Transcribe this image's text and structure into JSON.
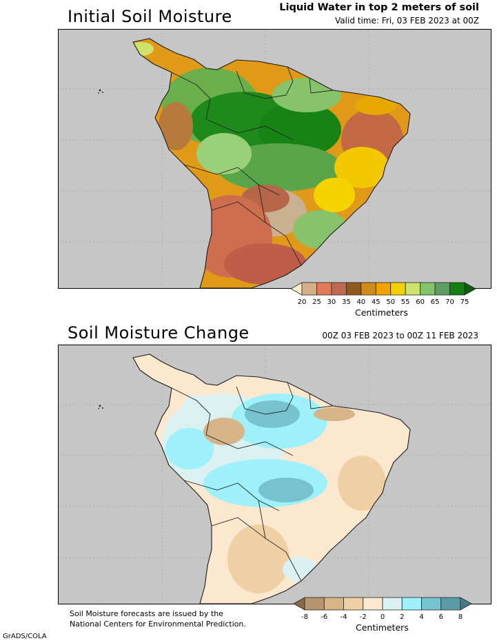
{
  "panel1": {
    "title": "Initial Soil Moisture",
    "header_line1": "Liquid Water in top 2 meters of soil",
    "header_line2": "Valid time: Fri, 03 FEB 2023 at 00Z",
    "colorbar": {
      "ticks": [
        "20",
        "25",
        "30",
        "35",
        "40",
        "45",
        "50",
        "55",
        "60",
        "65",
        "70",
        "75"
      ],
      "colors": [
        "#f6eccb",
        "#d4b08a",
        "#e07a58",
        "#bf6950",
        "#8f5a1c",
        "#cf8a1a",
        "#f0a300",
        "#f2d000",
        "#cde36b",
        "#84c46a",
        "#5d9d61",
        "#127f13",
        "#0b5f0c"
      ],
      "units": "Centimeters"
    }
  },
  "panel2": {
    "title": "Soil Moisture Change",
    "header_line1": "00Z 03 FEB 2023 to 00Z 11 FEB 2023",
    "colorbar": {
      "ticks": [
        "-8",
        "-6",
        "-4",
        "-2",
        "0",
        "2",
        "4",
        "6",
        "8"
      ],
      "colors": [
        "#8b6a4a",
        "#b89470",
        "#d6b487",
        "#efcfa4",
        "#fce8cf",
        "#dbf0f0",
        "#9ef1fa",
        "#76c3cd",
        "#5b9ba6",
        "#467d85"
      ],
      "units": "Centimeters"
    }
  },
  "footer": {
    "note_line1": "Soil Moisture forecasts are issued by the",
    "note_line2": "National Centers for Environmental Prediction.",
    "credit": "GrADS/COLA"
  }
}
